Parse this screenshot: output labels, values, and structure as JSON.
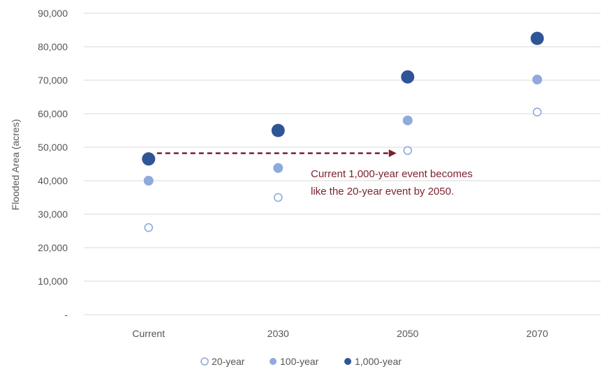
{
  "chart_data": {
    "type": "scatter",
    "title": "",
    "xlabel": "",
    "ylabel": "Flooded Area (acres)",
    "categories": [
      "Current",
      "2030",
      "2050",
      "2070"
    ],
    "ylim": [
      0,
      90000
    ],
    "yticks": [
      0,
      10000,
      20000,
      30000,
      40000,
      50000,
      60000,
      70000,
      80000,
      90000
    ],
    "ytick_labels": [
      "-",
      "10,000",
      "20,000",
      "30,000",
      "40,000",
      "50,000",
      "60,000",
      "70,000",
      "80,000",
      "90,000"
    ],
    "grid": true,
    "legend_position": "bottom",
    "series": [
      {
        "name": "20-year",
        "values": [
          26000,
          35000,
          49000,
          60500
        ],
        "color": "#8ea9db",
        "style": "hollow"
      },
      {
        "name": "100-year",
        "values": [
          40000,
          43800,
          58000,
          70200
        ],
        "color": "#8faadc",
        "style": "filled"
      },
      {
        "name": "1,000-year",
        "values": [
          46500,
          55000,
          71000,
          82500
        ],
        "color": "#2f5597",
        "style": "filled"
      }
    ],
    "annotations": [
      {
        "text_lines": [
          "Current 1,000-year event becomes",
          "like the 20-year event by 2050."
        ],
        "arrow_from": {
          "category": "Current",
          "y": 48000
        },
        "arrow_to": {
          "category": "2050",
          "y": 48000
        },
        "color": "#7b1f2e"
      }
    ]
  }
}
